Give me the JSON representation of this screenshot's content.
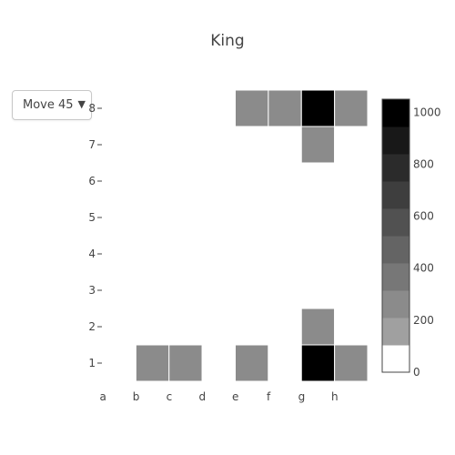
{
  "dropdown": {
    "selected": "Move 45",
    "arrow_icon": "triangle-down-icon"
  },
  "chart_data": {
    "type": "heatmap",
    "title": "King",
    "x_categories": [
      "a",
      "b",
      "c",
      "d",
      "e",
      "f",
      "g",
      "h"
    ],
    "y_categories": [
      "1",
      "2",
      "3",
      "4",
      "5",
      "6",
      "7",
      "8"
    ],
    "z": [
      [
        0,
        200,
        200,
        0,
        200,
        0,
        1050,
        200
      ],
      [
        0,
        0,
        0,
        0,
        0,
        0,
        200,
        0
      ],
      [
        0,
        0,
        0,
        0,
        0,
        0,
        0,
        0
      ],
      [
        0,
        0,
        0,
        0,
        0,
        0,
        0,
        0
      ],
      [
        0,
        0,
        0,
        0,
        0,
        0,
        0,
        0
      ],
      [
        0,
        0,
        0,
        0,
        0,
        0,
        0,
        0
      ],
      [
        0,
        0,
        0,
        0,
        0,
        0,
        200,
        0
      ],
      [
        0,
        0,
        0,
        0,
        200,
        200,
        1050,
        200
      ]
    ],
    "zmin": 0,
    "zmax": 1050,
    "colorbar_ticks": [
      0,
      200,
      400,
      600,
      800,
      1000
    ],
    "colorscale": [
      "#ffffff",
      "#a0a0a0",
      "#8b8b8b",
      "#777777",
      "#646464",
      "#515151",
      "#3e3e3e",
      "#2b2b2b",
      "#181818",
      "#000000"
    ],
    "grid": false
  }
}
